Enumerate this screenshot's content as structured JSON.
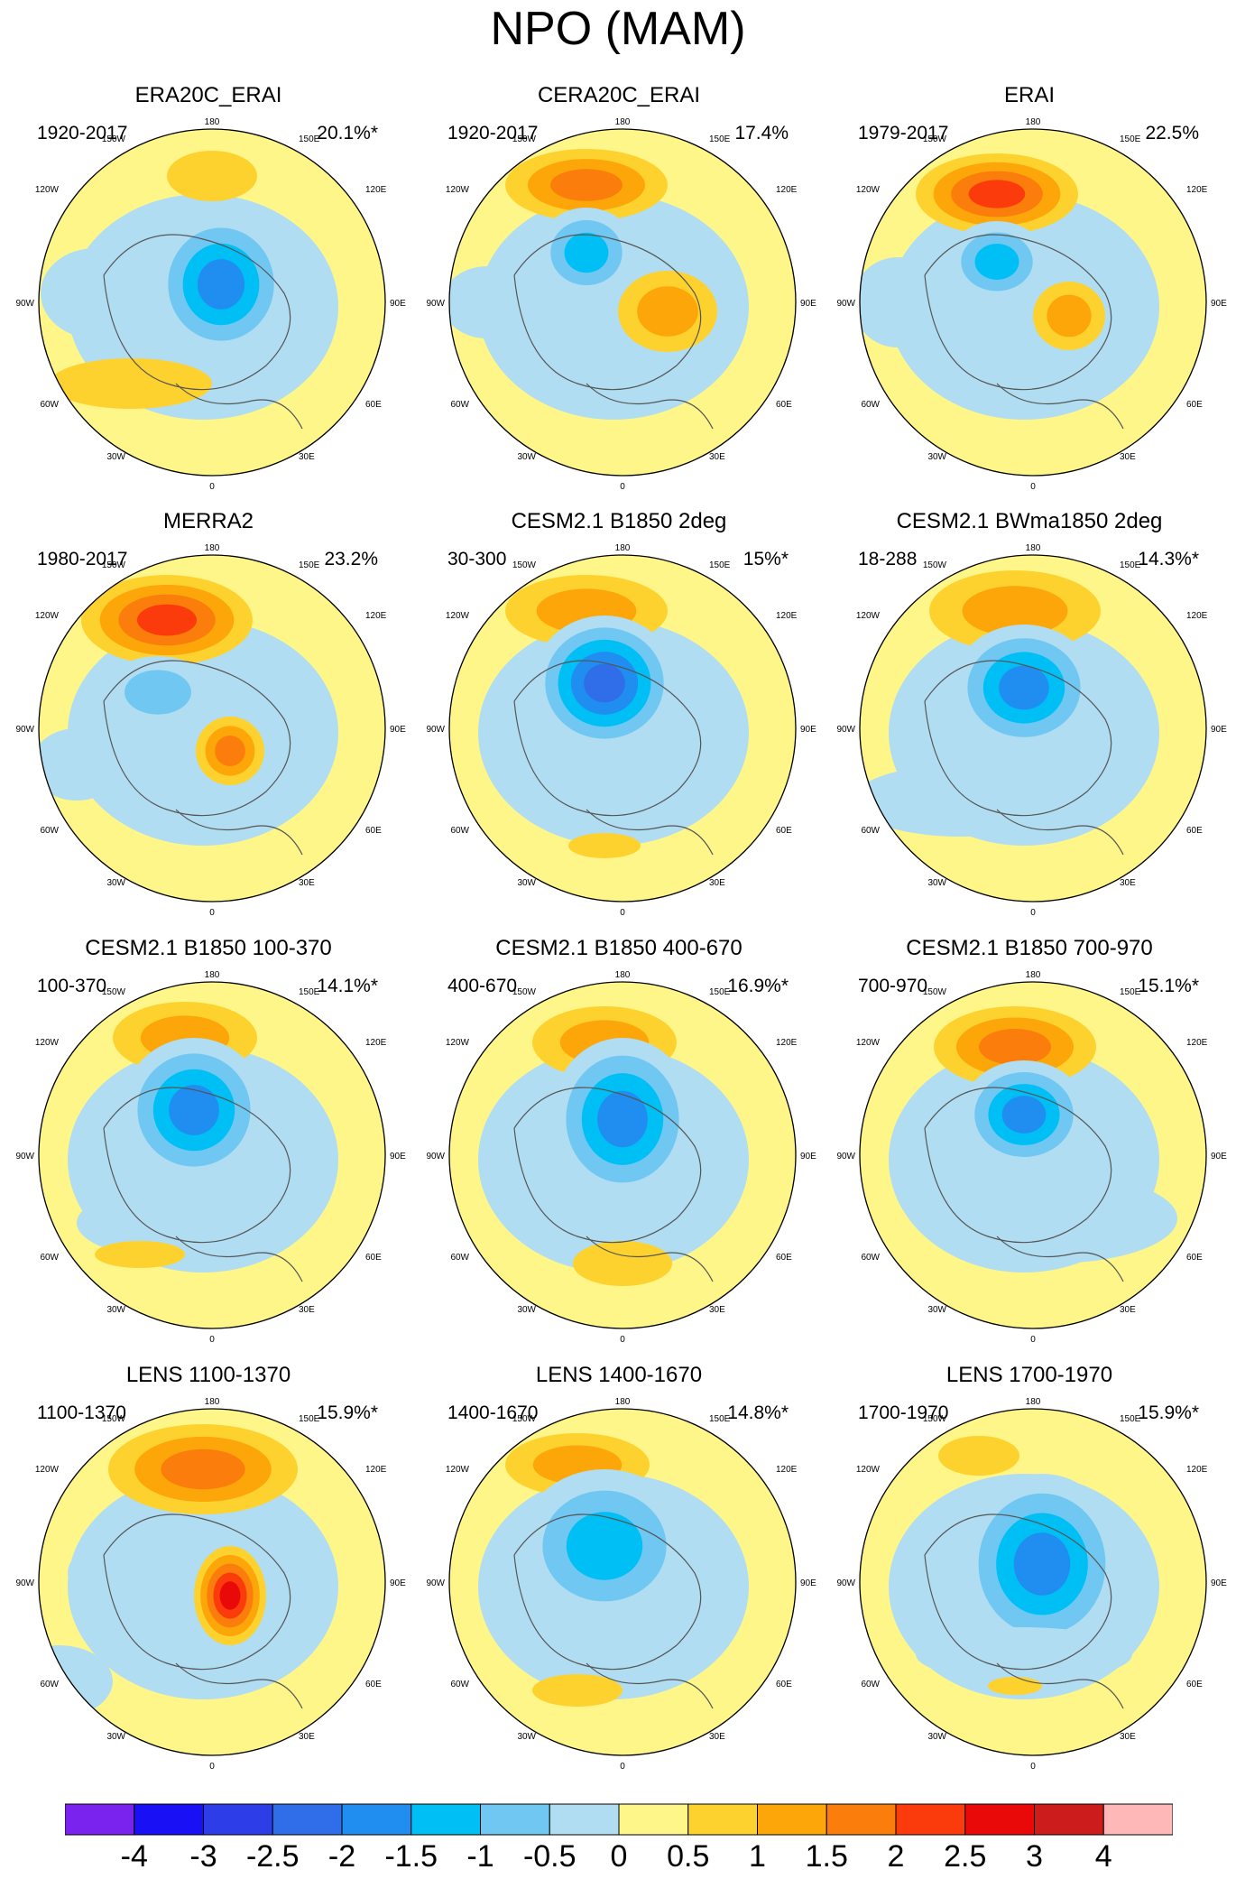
{
  "title": "NPO (MAM)",
  "lon_labels": {
    "top": "180",
    "upper_left": "150W",
    "upper_right": "150E",
    "left_upper": "120W",
    "right_upper": "120E",
    "left": "90W",
    "right": "90E",
    "left_lower": "60W",
    "right_lower": "60E",
    "lower_left": "30W",
    "lower_right": "30E",
    "bottom": "0"
  },
  "panels": [
    {
      "title": "ERA20C_ERAI",
      "period": "1920-2017",
      "percent": "20.1%*"
    },
    {
      "title": "CERA20C_ERAI",
      "period": "1920-2017",
      "percent": "17.4%"
    },
    {
      "title": "ERAI",
      "period": "1979-2017",
      "percent": "22.5%"
    },
    {
      "title": "MERRA2",
      "period": "1980-2017",
      "percent": "23.2%"
    },
    {
      "title": "CESM2.1 B1850 2deg",
      "period": "30-300",
      "percent": "15%*"
    },
    {
      "title": "CESM2.1 BWma1850 2deg",
      "period": "18-288",
      "percent": "14.3%*"
    },
    {
      "title": "CESM2.1 B1850 100-370",
      "period": "100-370",
      "percent": "14.1%*"
    },
    {
      "title": "CESM2.1 B1850 400-670",
      "period": "400-670",
      "percent": "16.9%*"
    },
    {
      "title": "CESM2.1 B1850 700-970",
      "period": "700-970",
      "percent": "15.1%*"
    },
    {
      "title": "LENS 1100-1370",
      "period": "1100-1370",
      "percent": "15.9%*"
    },
    {
      "title": "LENS 1400-1670",
      "period": "1400-1670",
      "percent": "14.8%*"
    },
    {
      "title": "LENS 1700-1970",
      "period": "1700-1970",
      "percent": "15.9%*"
    }
  ],
  "colorbar": {
    "colors": [
      "#7a22ee",
      "#1a10f5",
      "#2d3ee8",
      "#2f6ee8",
      "#1f8ef0",
      "#00bff5",
      "#70c8f2",
      "#b0ddf2",
      "#fff68a",
      "#fed22e",
      "#fca60a",
      "#fb7d0b",
      "#fb3b0b",
      "#ea0909",
      "#cc1c1c",
      "#ffb8b8"
    ],
    "labels": [
      "-4",
      "-3",
      "-2.5",
      "-2",
      "-1.5",
      "-1",
      "-0.5",
      "0",
      "0.5",
      "1",
      "1.5",
      "2",
      "2.5",
      "3",
      "4"
    ]
  },
  "field_colors": {
    "background": "#fff68a",
    "neg_levels": [
      "#b0ddf2",
      "#70c8f2",
      "#00bff5",
      "#1f8ef0",
      "#2f6ee8",
      "#2d3ee8",
      "#1a10f5"
    ],
    "pos_levels": [
      "#fed22e",
      "#fca60a",
      "#fb7d0b",
      "#fb3b0b",
      "#ea0909"
    ]
  }
}
